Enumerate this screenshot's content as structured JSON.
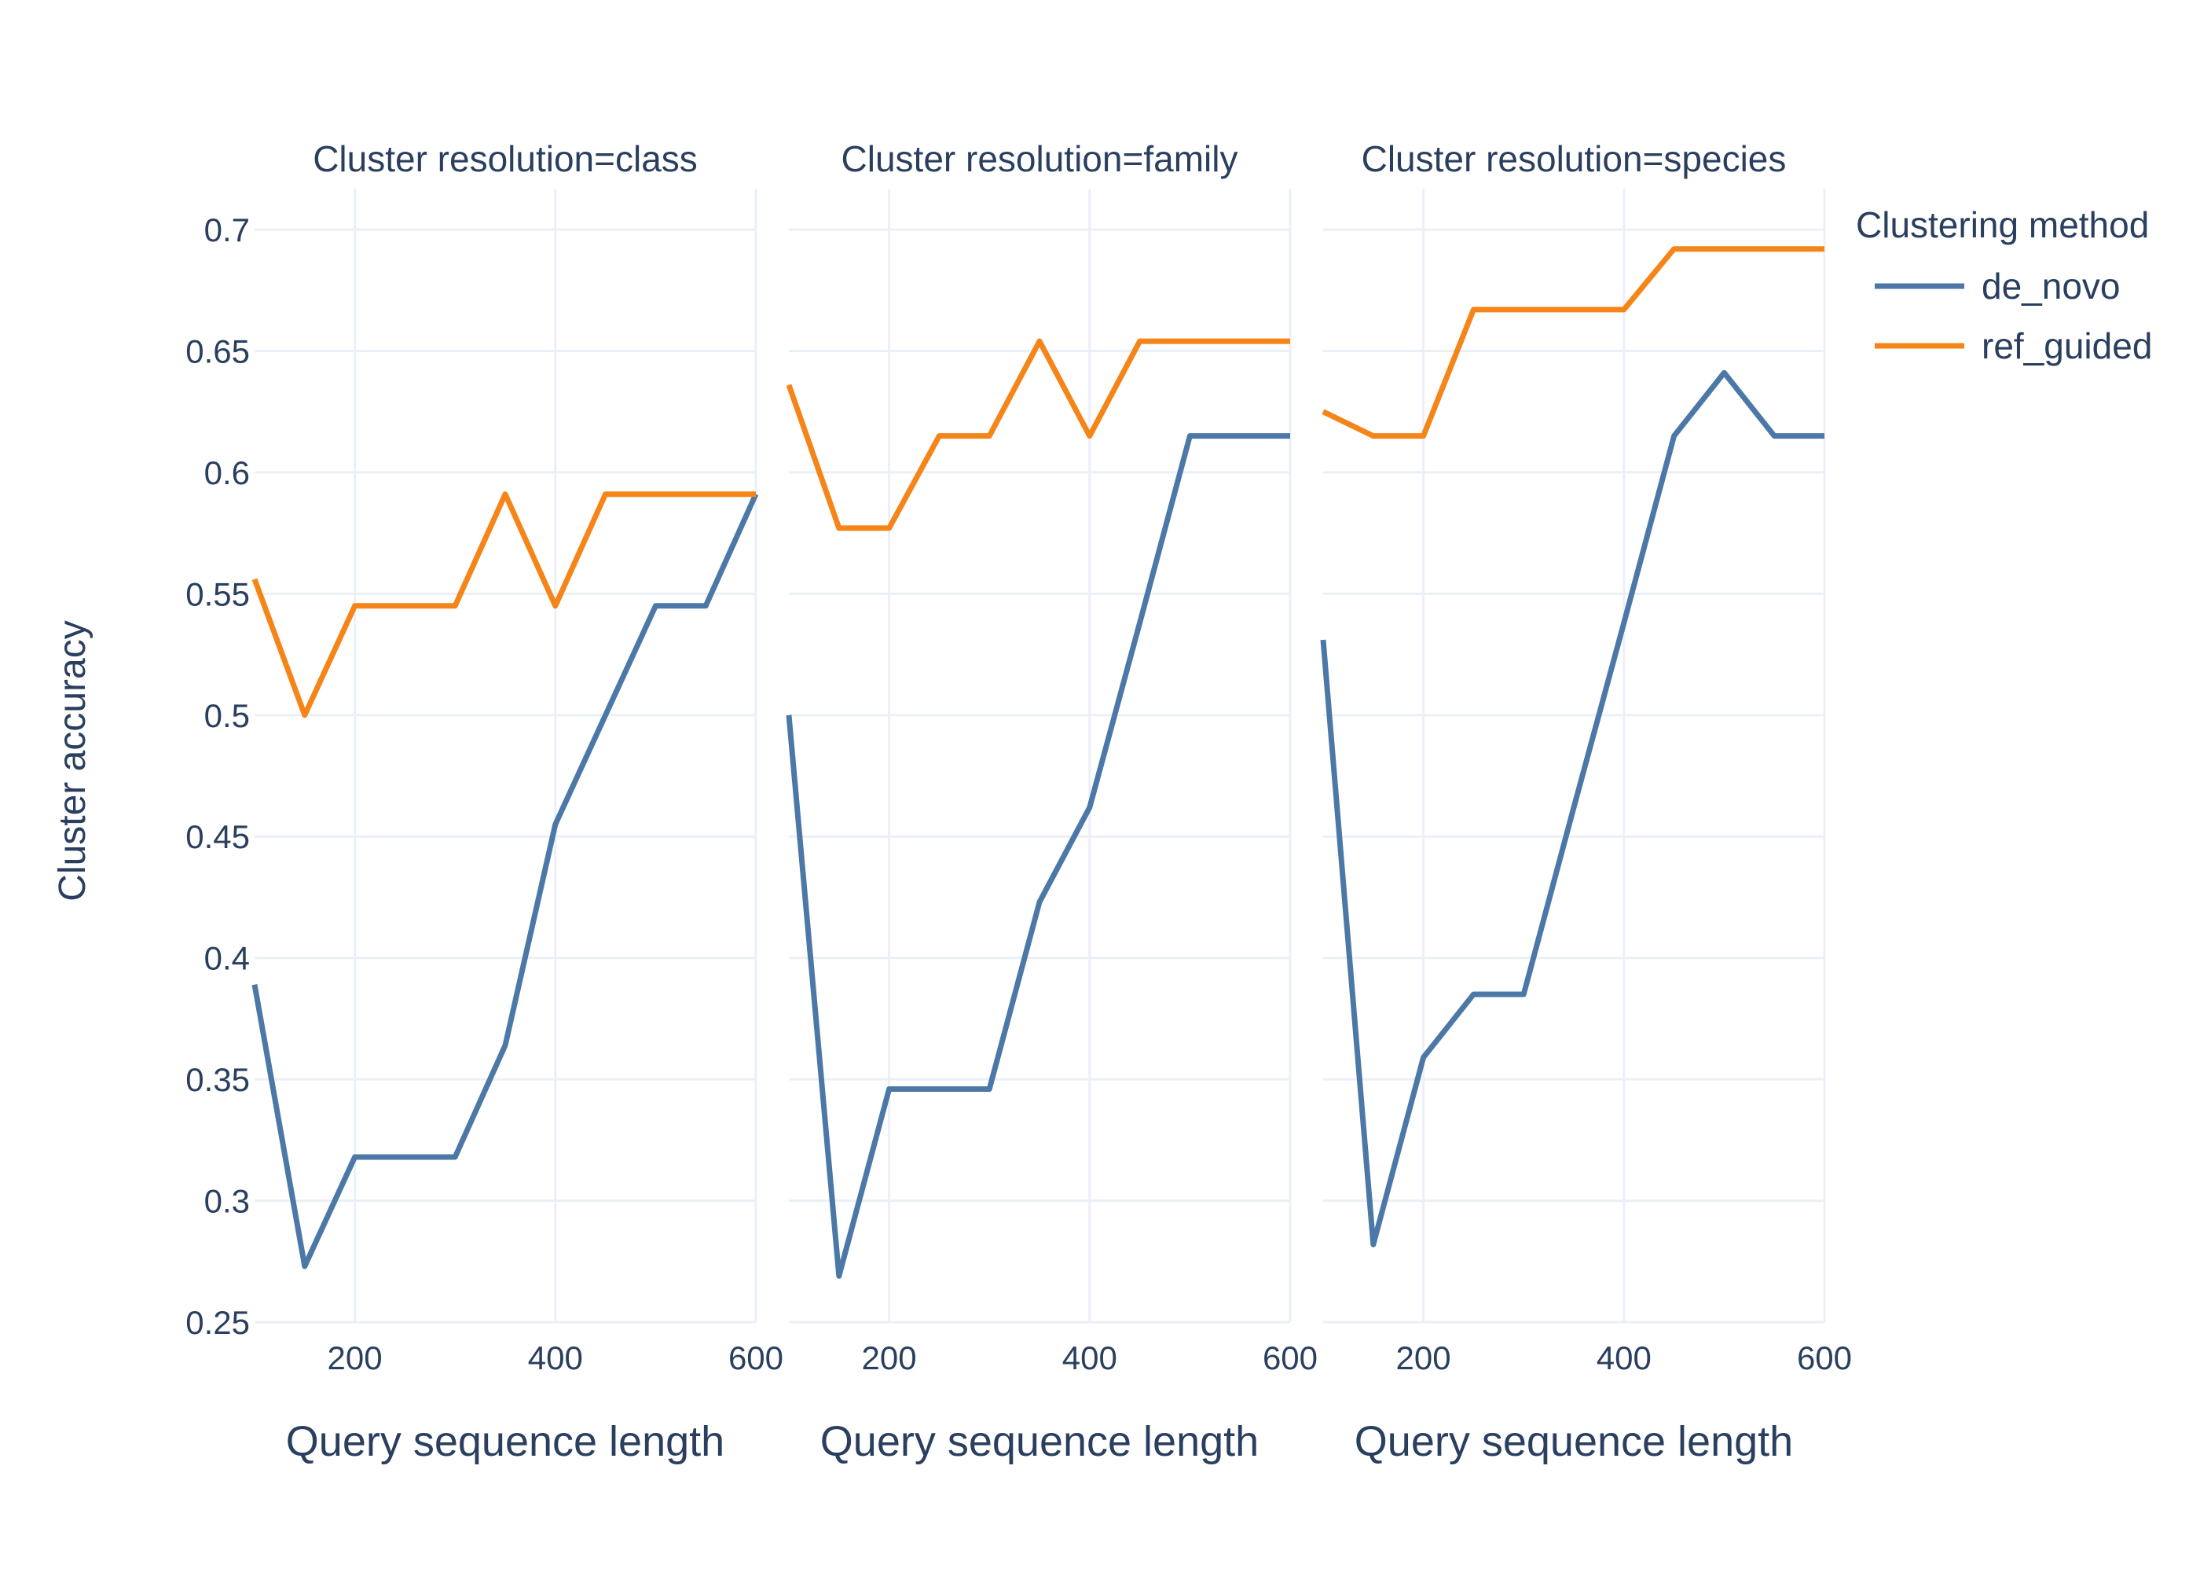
{
  "chart_data": {
    "type": "line",
    "ylabel": "Cluster accuracy",
    "ylim": [
      0.25,
      0.71
    ],
    "xlim": [
      100,
      600
    ],
    "yticks": [
      "0.25",
      "0.3",
      "0.35",
      "0.4",
      "0.45",
      "0.5",
      "0.55",
      "0.6",
      "0.65",
      "0.7"
    ],
    "xticks": [
      "200",
      "400",
      "600"
    ],
    "grid": true,
    "legend": {
      "title": "Clustering method",
      "placement": "top-right",
      "items": [
        {
          "name": "de_novo",
          "color": "#4c78a8"
        },
        {
          "name": "ref_guided",
          "color": "#f58518"
        }
      ]
    },
    "x": [
      100,
      150,
      200,
      250,
      300,
      350,
      400,
      450,
      500,
      550,
      600
    ],
    "facets": [
      {
        "title": "Cluster resolution=class",
        "xlabel": "Query sequence length",
        "series": [
          {
            "name": "de_novo",
            "color": "#4c78a8",
            "values": [
              0.389,
              0.273,
              0.318,
              0.318,
              0.318,
              0.364,
              0.455,
              0.5,
              0.545,
              0.545,
              0.591
            ]
          },
          {
            "name": "ref_guided",
            "color": "#f58518",
            "values": [
              0.556,
              0.5,
              0.545,
              0.545,
              0.545,
              0.591,
              0.545,
              0.591,
              0.591,
              0.591,
              0.591
            ]
          }
        ]
      },
      {
        "title": "Cluster resolution=family",
        "xlabel": "Query sequence length",
        "series": [
          {
            "name": "de_novo",
            "color": "#4c78a8",
            "values": [
              0.5,
              0.269,
              0.346,
              0.346,
              0.346,
              0.423,
              0.462,
              0.538,
              0.615,
              0.615,
              0.615
            ]
          },
          {
            "name": "ref_guided",
            "color": "#f58518",
            "values": [
              0.636,
              0.577,
              0.577,
              0.615,
              0.615,
              0.654,
              0.615,
              0.654,
              0.654,
              0.654,
              0.654
            ]
          }
        ]
      },
      {
        "title": "Cluster resolution=species",
        "xlabel": "Query sequence length",
        "series": [
          {
            "name": "de_novo",
            "color": "#4c78a8",
            "values": [
              0.531,
              0.282,
              0.359,
              0.385,
              0.385,
              0.462,
              0.538,
              0.615,
              0.641,
              0.615,
              0.615
            ]
          },
          {
            "name": "ref_guided",
            "color": "#f58518",
            "values": [
              0.625,
              0.615,
              0.615,
              0.667,
              0.667,
              0.667,
              0.667,
              0.692,
              0.692,
              0.692,
              0.692
            ]
          }
        ]
      }
    ]
  }
}
